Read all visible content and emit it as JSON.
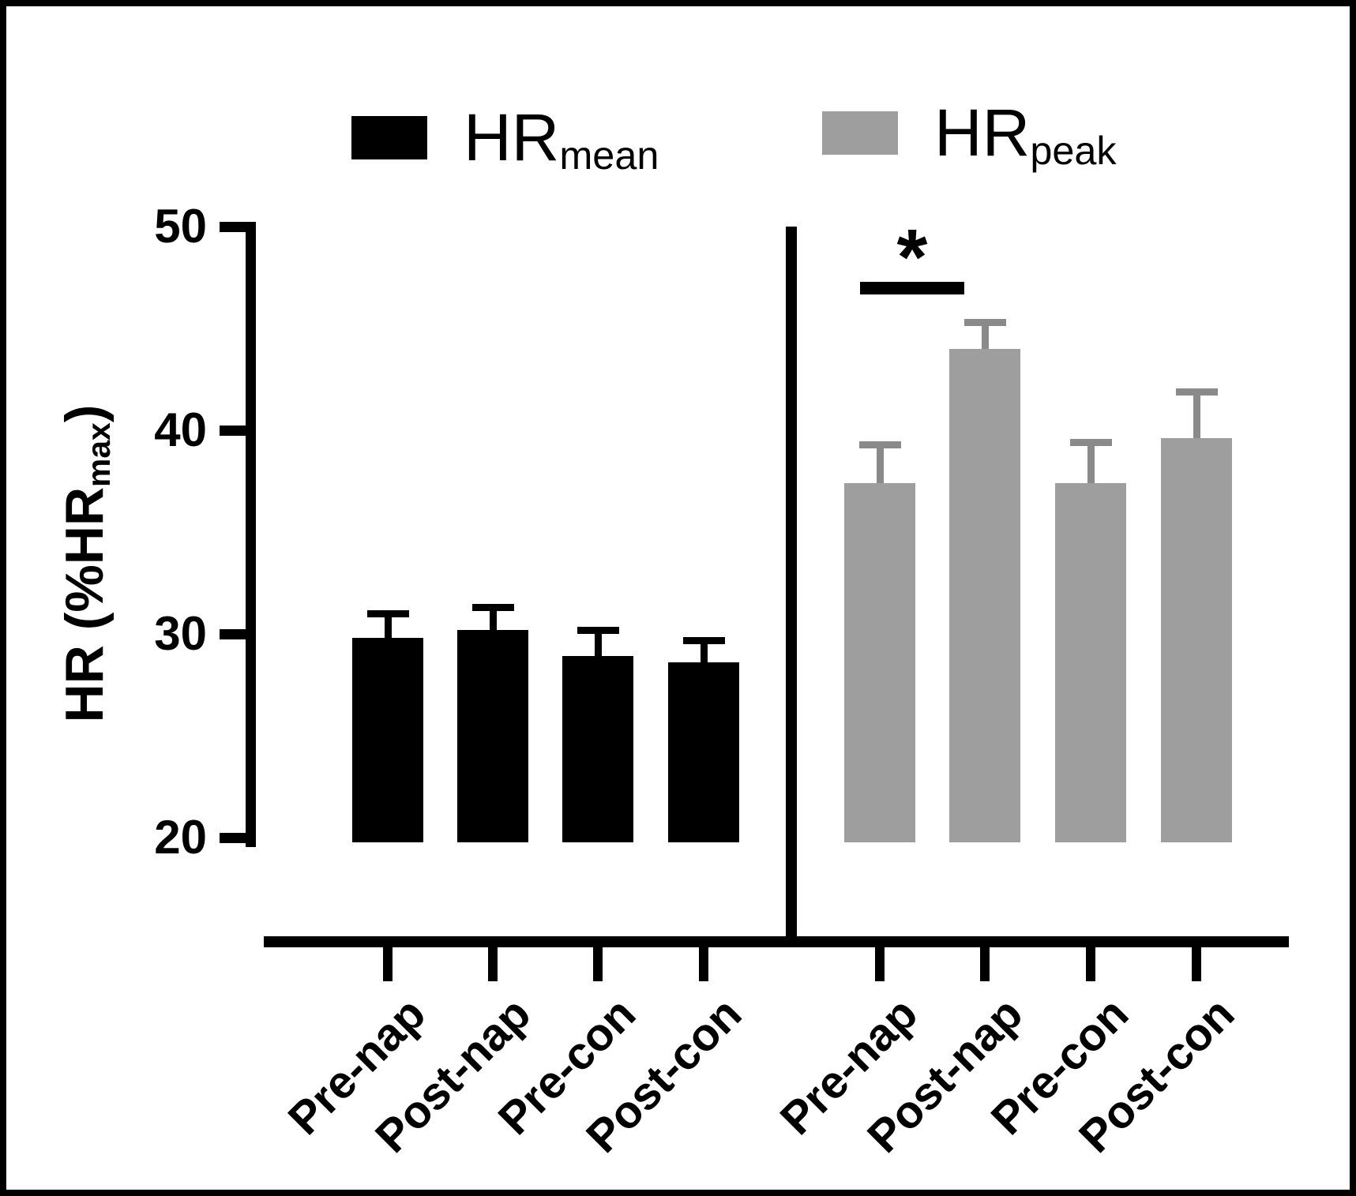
{
  "chart_data": {
    "type": "bar",
    "title": "",
    "ylabel": {
      "pre": "HR (%HR",
      "sub": "max",
      "post": ")"
    },
    "y_axis": {
      "min": 20,
      "max": 50,
      "ticks": [
        50,
        40,
        30,
        20
      ]
    },
    "grid": "off",
    "legend_position": "top",
    "categories": [
      "Pre-nap",
      "Post-nap",
      "Pre-con",
      "Post-con"
    ],
    "series": [
      {
        "name_main": "HR",
        "name_sub": "mean",
        "color": "#000000",
        "error_color": "#000000",
        "values": [
          29.8,
          30.2,
          28.9,
          28.6
        ],
        "errors": [
          1.2,
          1.1,
          1.3,
          1.1
        ]
      },
      {
        "name_main": "HR",
        "name_sub": "peak",
        "color": "#9e9e9e",
        "error_color": "#8a8a8a",
        "values": [
          37.4,
          44.0,
          37.4,
          39.6
        ],
        "errors": [
          1.9,
          1.3,
          2.0,
          2.3
        ]
      }
    ],
    "significance": {
      "label": "*",
      "series": "HRpeak",
      "between": [
        "Pre-nap",
        "Post-nap"
      ]
    }
  }
}
